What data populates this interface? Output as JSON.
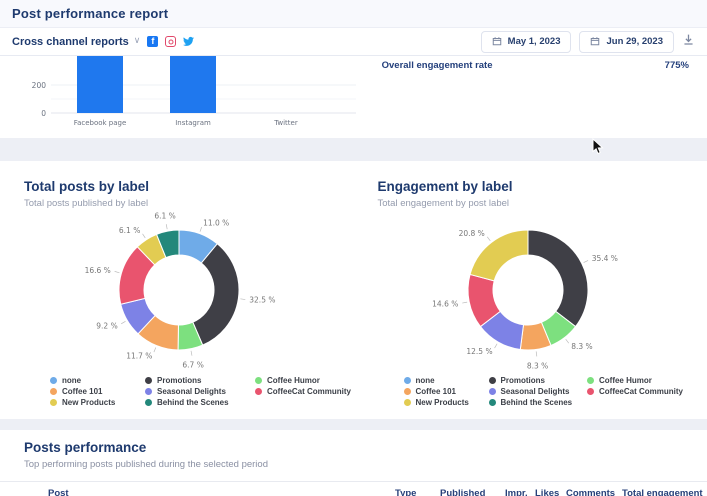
{
  "header": {
    "title": "Post performance report"
  },
  "toolbar": {
    "report_selector": "Cross channel reports",
    "social_channels": [
      "facebook",
      "instagram",
      "twitter"
    ],
    "date_from": "May 1, 2023",
    "date_to": "Jun 29, 2023"
  },
  "overview": {
    "stat_label": "Overall engagement rate",
    "stat_value": "775%"
  },
  "posts": {
    "title": "Posts performance",
    "subtitle": "Top performing posts published during the selected period",
    "columns": [
      "Post",
      "Type",
      "Published",
      "Impr.",
      "Likes",
      "Comments",
      "Total engagement"
    ]
  },
  "legend_colors": {
    "none": "#6fabe8",
    "Coffee 101": "#f4a55f",
    "New Products": "#e2cc52",
    "Promotions": "#3f3f46",
    "Seasonal Delights": "#7d82e6",
    "Behind the Scenes": "#23887b",
    "Coffee Humor": "#7de07f",
    "CoffeeCat Community": "#e9546e"
  },
  "legend_columns": [
    [
      "none",
      "Coffee 101",
      "New Products"
    ],
    [
      "Promotions",
      "Seasonal Delights",
      "Behind the Scenes"
    ],
    [
      "Coffee Humor",
      "CoffeeCat Community"
    ]
  ],
  "chart_data": [
    {
      "id": "channels-bar",
      "type": "bar",
      "categories": [
        "Facebook page",
        "Instagram",
        "Twitter"
      ],
      "values": [
        400,
        400,
        0
      ],
      "note": "Facebook page and Instagram bars are clipped at the top edge (chart partially scrolled out of view); Twitter shows no bar",
      "y_ticks": [
        0,
        200
      ],
      "visible_ymax": 400,
      "bar_color": "#1f78ee",
      "grid": true,
      "title": "",
      "xlabel": "",
      "ylabel": ""
    },
    {
      "id": "total-posts-donut",
      "type": "pie",
      "donut": true,
      "title": "Total posts by label",
      "subtitle": "Total posts published by label",
      "label_suffix": " %",
      "segments": [
        {
          "label": "none",
          "value": 11.0,
          "color": "#6fabe8"
        },
        {
          "label": "Promotions",
          "value": 32.5,
          "color": "#3f3f46"
        },
        {
          "label": "Coffee Humor",
          "value": 6.7,
          "color": "#7de07f"
        },
        {
          "label": "Coffee 101",
          "value": 11.7,
          "color": "#f4a55f"
        },
        {
          "label": "Seasonal Delights",
          "value": 9.2,
          "color": "#7d82e6"
        },
        {
          "label": "CoffeeCat Community",
          "value": 16.6,
          "color": "#e9546e"
        },
        {
          "label": "New Products",
          "value": 6.1,
          "color": "#e2cc52"
        },
        {
          "label": "Behind the Scenes",
          "value": 6.1,
          "color": "#23887b"
        }
      ],
      "legend_position": "bottom"
    },
    {
      "id": "engagement-donut",
      "type": "pie",
      "donut": true,
      "title": "Engagement by label",
      "subtitle": "Total engagement by post label",
      "label_suffix": " %",
      "segments": [
        {
          "label": "Promotions",
          "value": 35.4,
          "color": "#3f3f46"
        },
        {
          "label": "Coffee Humor",
          "value": 8.3,
          "color": "#7de07f"
        },
        {
          "label": "Coffee 101",
          "value": 8.3,
          "color": "#f4a55f"
        },
        {
          "label": "Seasonal Delights",
          "value": 12.5,
          "color": "#7d82e6"
        },
        {
          "label": "CoffeeCat Community",
          "value": 14.6,
          "color": "#e9546e"
        },
        {
          "label": "New Products",
          "value": 20.8,
          "color": "#e2cc52"
        }
      ],
      "legend_position": "bottom"
    }
  ]
}
